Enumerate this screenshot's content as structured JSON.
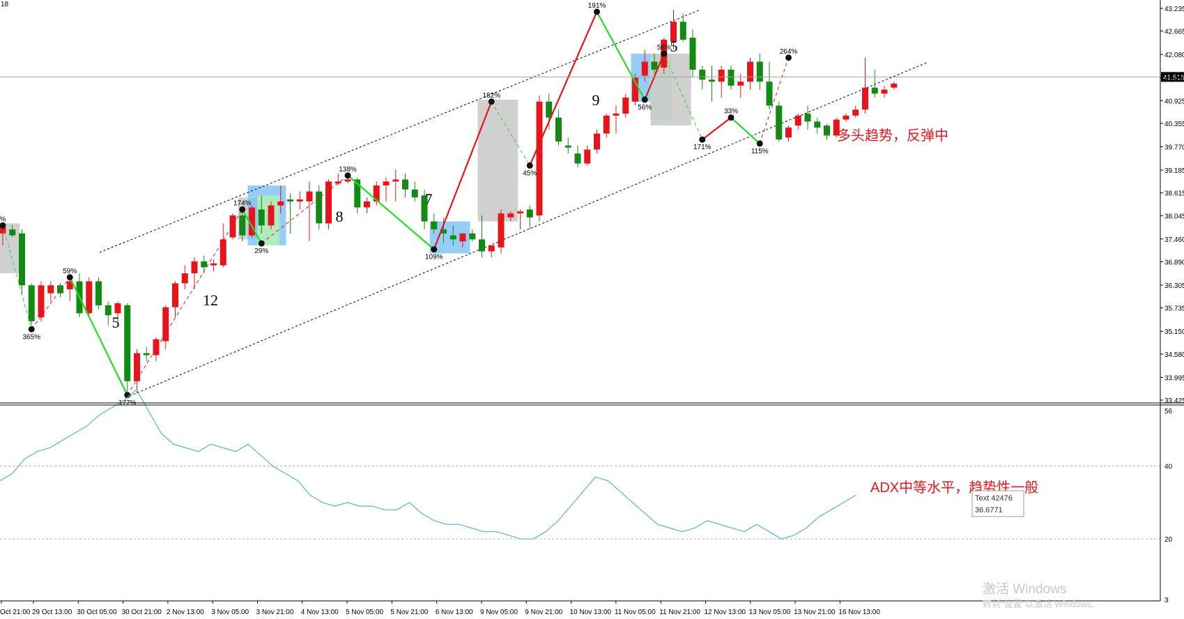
{
  "top_left_label": "18",
  "price_axis": {
    "ticks": [
      "43.235",
      "42.665",
      "42.080",
      "41.495",
      "40.925",
      "40.355",
      "39.770",
      "39.185",
      "38.615",
      "38.045",
      "37.460",
      "36.890",
      "36.305",
      "35.735",
      "35.150",
      "34.580",
      "33.995",
      "33.425"
    ],
    "current_price": "41.518"
  },
  "adx_axis": {
    "ticks": [
      "56",
      "40",
      "20",
      "3"
    ]
  },
  "time_axis": [
    "Oct 21:00",
    "29 Oct 13:00",
    "30 Oct 05:00",
    "30 Oct 21:00",
    "2 Nov 13:00",
    "3 Nov 05:00",
    "3 Nov 21:00",
    "4 Nov 13:00",
    "5 Nov 05:00",
    "5 Nov 21:00",
    "6 Nov 13:00",
    "9 Nov 05:00",
    "9 Nov 21:00",
    "10 Nov 13:00",
    "11 Nov 05:00",
    "11 Nov 21:00",
    "12 Nov 13:00",
    "13 Nov 05:00",
    "13 Nov 21:00",
    "16 Nov 13:00"
  ],
  "wave_counts": [
    "5",
    "12",
    "8",
    "7",
    "9",
    "5"
  ],
  "swing_labels": [
    "%",
    "365%",
    "59%",
    "177%",
    "174%",
    "29%",
    "138%",
    "109%",
    "182%",
    "45%",
    "191%",
    "56%",
    "58%",
    "171%",
    "33%",
    "115%",
    "264%"
  ],
  "annotations": {
    "price_note": "多头趋势，反弹中",
    "adx_note": "ADX中等水平，趋势性一般"
  },
  "tooltip": {
    "line1": "Text 42476",
    "line2": "36.6771"
  },
  "watermark": {
    "line1": "激活 Windows",
    "line2": "转到“设置”以激活 Windows。"
  },
  "colors": {
    "bull": "#e8141c",
    "bear": "#138a13",
    "zigzag_up": "#e8141c",
    "zigzag_down": "#22dd22",
    "adx": "#5ab4c4",
    "box_gray": "#c8c8c8",
    "box_blue": "#84c4f4",
    "box_green": "#b4f0b4"
  },
  "chart_data": {
    "type": "candlestick",
    "symbol_timeframe": "H8",
    "price_range": [
      33.425,
      43.235
    ],
    "candles": [
      {
        "o": 37.6,
        "h": 37.75,
        "l": 37.3,
        "c": 37.75
      },
      {
        "o": 37.7,
        "h": 37.8,
        "l": 37.5,
        "c": 37.55
      },
      {
        "o": 37.6,
        "h": 37.7,
        "l": 36.05,
        "c": 36.3
      },
      {
        "o": 36.3,
        "h": 36.35,
        "l": 35.3,
        "c": 35.4
      },
      {
        "o": 35.5,
        "h": 36.4,
        "l": 35.4,
        "c": 36.3
      },
      {
        "o": 36.1,
        "h": 36.4,
        "l": 35.9,
        "c": 36.3
      },
      {
        "o": 36.3,
        "h": 36.35,
        "l": 36.0,
        "c": 36.1
      },
      {
        "o": 36.2,
        "h": 36.5,
        "l": 35.9,
        "c": 36.4
      },
      {
        "o": 36.4,
        "h": 36.6,
        "l": 35.5,
        "c": 35.6
      },
      {
        "o": 35.6,
        "h": 36.5,
        "l": 35.5,
        "c": 36.4
      },
      {
        "o": 36.4,
        "h": 36.5,
        "l": 35.7,
        "c": 35.8
      },
      {
        "o": 35.8,
        "h": 35.9,
        "l": 35.3,
        "c": 35.55
      },
      {
        "o": 35.6,
        "h": 35.9,
        "l": 35.4,
        "c": 35.85
      },
      {
        "o": 35.8,
        "h": 35.85,
        "l": 33.55,
        "c": 33.9
      },
      {
        "o": 33.9,
        "h": 34.7,
        "l": 33.6,
        "c": 34.6
      },
      {
        "o": 34.6,
        "h": 34.75,
        "l": 34.4,
        "c": 34.55
      },
      {
        "o": 34.55,
        "h": 35.0,
        "l": 34.4,
        "c": 34.95
      },
      {
        "o": 34.9,
        "h": 35.8,
        "l": 34.7,
        "c": 35.75
      },
      {
        "o": 35.75,
        "h": 36.4,
        "l": 35.5,
        "c": 36.35
      },
      {
        "o": 36.35,
        "h": 36.8,
        "l": 36.2,
        "c": 36.6
      },
      {
        "o": 36.6,
        "h": 37.0,
        "l": 36.2,
        "c": 36.9
      },
      {
        "o": 36.9,
        "h": 37.05,
        "l": 36.6,
        "c": 36.75
      },
      {
        "o": 36.8,
        "h": 36.95,
        "l": 36.65,
        "c": 36.85
      },
      {
        "o": 36.8,
        "h": 37.85,
        "l": 36.75,
        "c": 37.45
      },
      {
        "o": 37.5,
        "h": 38.1,
        "l": 37.45,
        "c": 38.05
      },
      {
        "o": 38.05,
        "h": 38.2,
        "l": 37.4,
        "c": 37.55
      },
      {
        "o": 37.55,
        "h": 38.3,
        "l": 37.5,
        "c": 38.25
      },
      {
        "o": 38.2,
        "h": 38.55,
        "l": 37.6,
        "c": 37.8
      },
      {
        "o": 37.8,
        "h": 38.4,
        "l": 37.7,
        "c": 38.3
      },
      {
        "o": 38.3,
        "h": 38.8,
        "l": 38.1,
        "c": 38.4
      },
      {
        "o": 38.45,
        "h": 38.6,
        "l": 37.6,
        "c": 38.4
      },
      {
        "o": 38.4,
        "h": 38.65,
        "l": 38.2,
        "c": 38.45
      },
      {
        "o": 38.4,
        "h": 38.9,
        "l": 37.4,
        "c": 38.65
      },
      {
        "o": 38.65,
        "h": 38.8,
        "l": 37.7,
        "c": 37.85
      },
      {
        "o": 37.85,
        "h": 38.95,
        "l": 37.7,
        "c": 38.9
      },
      {
        "o": 38.85,
        "h": 39.1,
        "l": 38.8,
        "c": 38.9
      },
      {
        "o": 38.9,
        "h": 39.0,
        "l": 38.85,
        "c": 38.95
      },
      {
        "o": 38.95,
        "h": 39.0,
        "l": 38.1,
        "c": 38.25
      },
      {
        "o": 38.25,
        "h": 38.5,
        "l": 38.1,
        "c": 38.4
      },
      {
        "o": 38.4,
        "h": 38.9,
        "l": 38.3,
        "c": 38.8
      },
      {
        "o": 38.8,
        "h": 39.0,
        "l": 38.4,
        "c": 38.9
      },
      {
        "o": 38.9,
        "h": 39.2,
        "l": 38.4,
        "c": 38.95
      },
      {
        "o": 38.95,
        "h": 39.1,
        "l": 38.5,
        "c": 38.7
      },
      {
        "o": 38.7,
        "h": 38.9,
        "l": 38.4,
        "c": 38.5
      },
      {
        "o": 38.55,
        "h": 38.7,
        "l": 37.7,
        "c": 37.9
      },
      {
        "o": 37.9,
        "h": 38.1,
        "l": 37.6,
        "c": 37.7
      },
      {
        "o": 37.7,
        "h": 38.0,
        "l": 37.35,
        "c": 37.6
      },
      {
        "o": 37.55,
        "h": 37.8,
        "l": 37.3,
        "c": 37.45
      },
      {
        "o": 37.4,
        "h": 37.6,
        "l": 37.25,
        "c": 37.6
      },
      {
        "o": 37.6,
        "h": 37.7,
        "l": 37.4,
        "c": 37.45
      },
      {
        "o": 37.45,
        "h": 38.05,
        "l": 37.0,
        "c": 37.15
      },
      {
        "o": 37.15,
        "h": 37.3,
        "l": 37.0,
        "c": 37.3
      },
      {
        "o": 37.25,
        "h": 38.2,
        "l": 37.1,
        "c": 38.1
      },
      {
        "o": 38.0,
        "h": 38.15,
        "l": 37.9,
        "c": 38.1
      },
      {
        "o": 38.1,
        "h": 38.2,
        "l": 37.7,
        "c": 38.15
      },
      {
        "o": 38.2,
        "h": 38.3,
        "l": 37.7,
        "c": 38.0
      },
      {
        "o": 38.05,
        "h": 41.05,
        "l": 37.9,
        "c": 40.9
      },
      {
        "o": 40.9,
        "h": 41.1,
        "l": 40.2,
        "c": 40.5
      },
      {
        "o": 40.5,
        "h": 40.7,
        "l": 39.8,
        "c": 39.9
      },
      {
        "o": 39.8,
        "h": 40.0,
        "l": 39.6,
        "c": 39.75
      },
      {
        "o": 39.6,
        "h": 39.8,
        "l": 39.25,
        "c": 39.35
      },
      {
        "o": 39.35,
        "h": 39.8,
        "l": 39.3,
        "c": 39.7
      },
      {
        "o": 39.7,
        "h": 40.2,
        "l": 39.6,
        "c": 40.1
      },
      {
        "o": 40.1,
        "h": 40.6,
        "l": 40.0,
        "c": 40.55
      },
      {
        "o": 40.55,
        "h": 40.8,
        "l": 40.1,
        "c": 40.6
      },
      {
        "o": 40.6,
        "h": 41.1,
        "l": 40.5,
        "c": 41.0
      },
      {
        "o": 40.9,
        "h": 41.6,
        "l": 40.8,
        "c": 41.5
      },
      {
        "o": 41.55,
        "h": 42.2,
        "l": 41.4,
        "c": 41.9
      },
      {
        "o": 41.9,
        "h": 42.1,
        "l": 41.6,
        "c": 41.7
      },
      {
        "o": 41.75,
        "h": 42.5,
        "l": 41.6,
        "c": 42.45
      },
      {
        "o": 42.4,
        "h": 43.2,
        "l": 42.2,
        "c": 42.9
      },
      {
        "o": 42.9,
        "h": 43.1,
        "l": 42.4,
        "c": 42.45
      },
      {
        "o": 42.5,
        "h": 42.7,
        "l": 41.5,
        "c": 41.7
      },
      {
        "o": 41.7,
        "h": 41.8,
        "l": 41.2,
        "c": 41.45
      },
      {
        "o": 41.45,
        "h": 41.8,
        "l": 40.9,
        "c": 41.4
      },
      {
        "o": 41.4,
        "h": 41.8,
        "l": 41.0,
        "c": 41.7
      },
      {
        "o": 41.7,
        "h": 41.8,
        "l": 41.2,
        "c": 41.3
      },
      {
        "o": 41.3,
        "h": 41.6,
        "l": 41.0,
        "c": 41.4
      },
      {
        "o": 41.4,
        "h": 42.0,
        "l": 41.2,
        "c": 41.9
      },
      {
        "o": 41.9,
        "h": 42.1,
        "l": 41.2,
        "c": 41.4
      },
      {
        "o": 41.4,
        "h": 41.9,
        "l": 40.7,
        "c": 40.8
      },
      {
        "o": 40.8,
        "h": 40.9,
        "l": 39.9,
        "c": 39.95
      },
      {
        "o": 40.0,
        "h": 40.3,
        "l": 39.9,
        "c": 40.25
      },
      {
        "o": 40.3,
        "h": 40.6,
        "l": 40.2,
        "c": 40.55
      },
      {
        "o": 40.6,
        "h": 40.8,
        "l": 40.2,
        "c": 40.4
      },
      {
        "o": 40.4,
        "h": 40.5,
        "l": 40.1,
        "c": 40.25
      },
      {
        "o": 40.3,
        "h": 40.35,
        "l": 39.95,
        "c": 40.05
      },
      {
        "o": 40.05,
        "h": 40.5,
        "l": 40.0,
        "c": 40.45
      },
      {
        "o": 40.45,
        "h": 40.6,
        "l": 40.4,
        "c": 40.55
      },
      {
        "o": 40.55,
        "h": 40.8,
        "l": 40.5,
        "c": 40.7
      },
      {
        "o": 40.7,
        "h": 42.0,
        "l": 40.6,
        "c": 41.25
      },
      {
        "o": 41.25,
        "h": 41.7,
        "l": 41.0,
        "c": 41.1
      },
      {
        "o": 41.1,
        "h": 41.3,
        "l": 41.0,
        "c": 41.2
      },
      {
        "o": 41.25,
        "h": 41.4,
        "l": 41.2,
        "c": 41.35
      }
    ],
    "zigzag": [
      {
        "i": 0,
        "p": 37.8
      },
      {
        "i": 3,
        "p": 35.2
      },
      {
        "i": 7,
        "p": 36.5
      },
      {
        "i": 13,
        "p": 33.55
      },
      {
        "i": 25,
        "p": 38.2
      },
      {
        "i": 27,
        "p": 37.35
      },
      {
        "i": 36,
        "p": 39.05
      },
      {
        "i": 45,
        "p": 37.2
      },
      {
        "i": 51,
        "p": 40.9
      },
      {
        "i": 55,
        "p": 39.3
      },
      {
        "i": 62,
        "p": 43.15
      },
      {
        "i": 67,
        "p": 40.95
      },
      {
        "i": 69,
        "p": 42.1
      },
      {
        "i": 73,
        "p": 39.95
      },
      {
        "i": 76,
        "p": 40.5
      },
      {
        "i": 79,
        "p": 39.85
      },
      {
        "i": 82,
        "p": 42.0
      }
    ],
    "adx_series": [
      36,
      38,
      42,
      44,
      45,
      47,
      49,
      51,
      54,
      56,
      58,
      61,
      55,
      49,
      46,
      45,
      44,
      46,
      45,
      44,
      46,
      43,
      40,
      38,
      36,
      32,
      30,
      29,
      30,
      29,
      29,
      28,
      28,
      30,
      27,
      25,
      24,
      24,
      23,
      22,
      22,
      21,
      20,
      20,
      22,
      25,
      29,
      33,
      37,
      36,
      33,
      30,
      27,
      24,
      23,
      22,
      23,
      25,
      24,
      23,
      22,
      24,
      22,
      20,
      21,
      23,
      26,
      28,
      30,
      32
    ]
  }
}
